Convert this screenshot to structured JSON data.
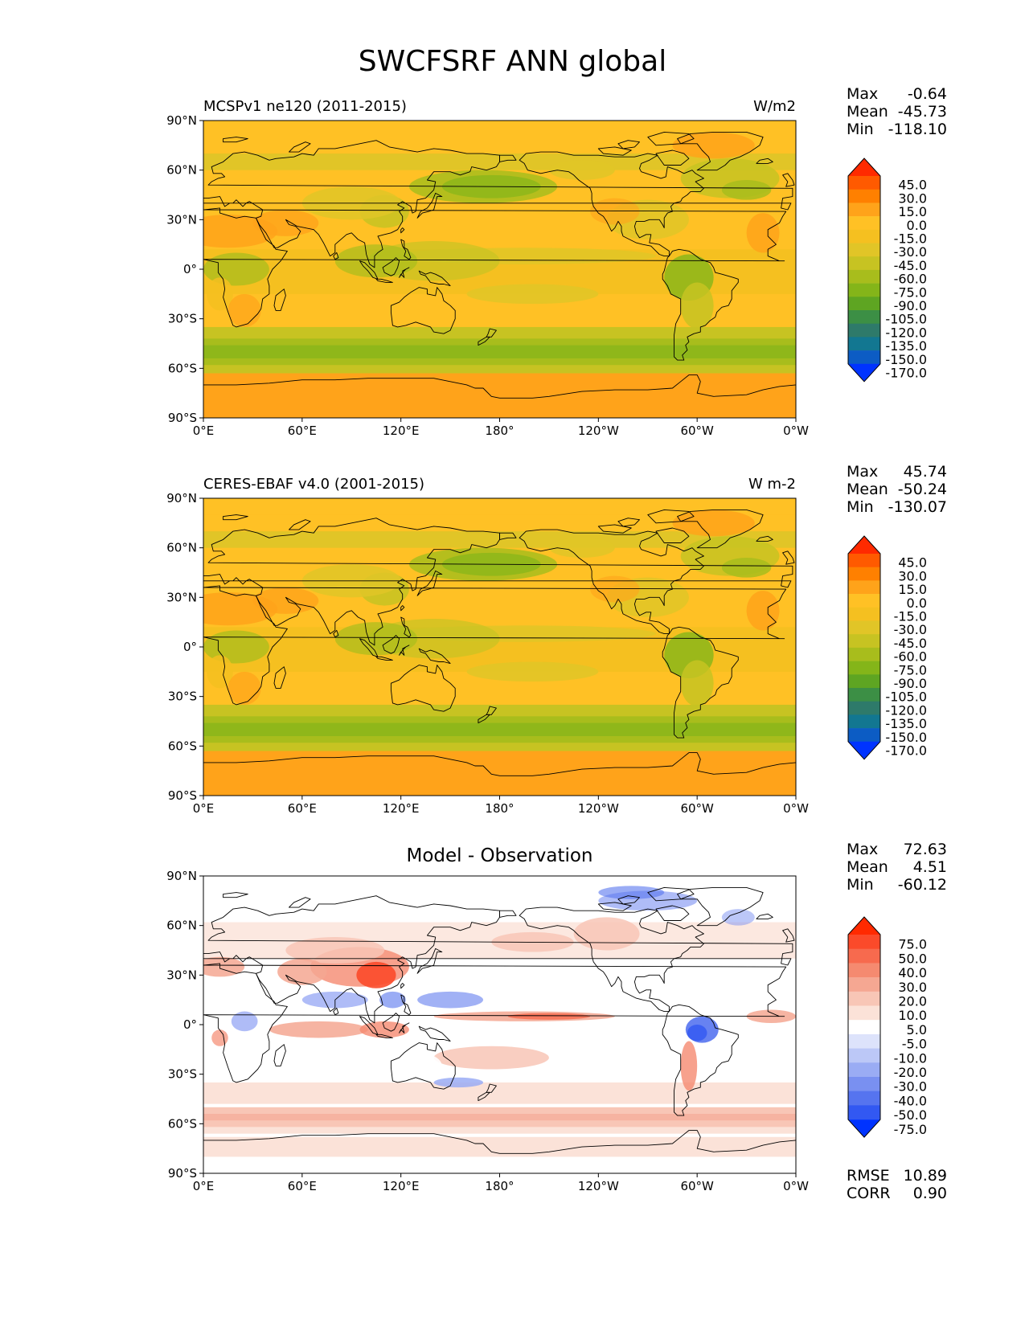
{
  "title": "SWCFSRF ANN global",
  "axes": {
    "lat_ticks": [
      "90°N",
      "60°N",
      "30°N",
      "0°",
      "30°S",
      "60°S",
      "90°S"
    ],
    "lon_ticks": [
      "0°E",
      "60°E",
      "120°E",
      "180°",
      "120°W",
      "60°W",
      "0°W"
    ]
  },
  "panels": [
    {
      "id": "model",
      "title": "MCSPv1 ne120 (2011-2015)",
      "title_position": "left",
      "units": "W/m2",
      "stats": [
        {
          "label": "Max",
          "value": "-0.64"
        },
        {
          "label": "Mean",
          "value": "-45.73"
        },
        {
          "label": "Min",
          "value": "-118.10"
        }
      ],
      "colorbar": {
        "labels": [
          "45.0",
          "30.0",
          "15.0",
          "0.0",
          "-15.0",
          "-30.0",
          "-45.0",
          "-60.0",
          "-75.0",
          "-90.0",
          "-105.0",
          "-120.0",
          "-135.0",
          "-150.0",
          "-170.0"
        ],
        "colors": [
          "#ff2a00",
          "#ff5a00",
          "#ff8000",
          "#ffa31a",
          "#ffc125",
          "#f5c020",
          "#e1c527",
          "#c7c322",
          "#a8bd1c",
          "#84b519",
          "#5ea522",
          "#3c8f45",
          "#2e7a6a",
          "#127791",
          "#0c5cc4",
          "#0033ff"
        ]
      },
      "color_scale": "sequential",
      "extras": []
    },
    {
      "id": "obs",
      "title": "CERES-EBAF v4.0 (2001-2015)",
      "title_position": "left",
      "units": "W m-2",
      "stats": [
        {
          "label": "Max",
          "value": "45.74"
        },
        {
          "label": "Mean",
          "value": "-50.24"
        },
        {
          "label": "Min",
          "value": "-130.07"
        }
      ],
      "colorbar": {
        "labels": [
          "45.0",
          "30.0",
          "15.0",
          "0.0",
          "-15.0",
          "-30.0",
          "-45.0",
          "-60.0",
          "-75.0",
          "-90.0",
          "-105.0",
          "-120.0",
          "-135.0",
          "-150.0",
          "-170.0"
        ],
        "colors": [
          "#ff2a00",
          "#ff5a00",
          "#ff8000",
          "#ffa31a",
          "#ffc125",
          "#f5c020",
          "#e1c527",
          "#c7c322",
          "#a8bd1c",
          "#84b519",
          "#5ea522",
          "#3c8f45",
          "#2e7a6a",
          "#127791",
          "#0c5cc4",
          "#0033ff"
        ]
      },
      "color_scale": "sequential",
      "extras": []
    },
    {
      "id": "diff",
      "title": "Model - Observation",
      "title_position": "center",
      "units": "",
      "stats": [
        {
          "label": "Max",
          "value": "72.63"
        },
        {
          "label": "Mean",
          "value": "4.51"
        },
        {
          "label": "Min",
          "value": "-60.12"
        }
      ],
      "colorbar": {
        "labels": [
          "75.0",
          "50.0",
          "40.0",
          "30.0",
          "20.0",
          "10.0",
          "5.0",
          "-5.0",
          "-10.0",
          "-20.0",
          "-30.0",
          "-40.0",
          "-50.0",
          "-75.0"
        ],
        "colors": [
          "#ff2a00",
          "#fb4a2a",
          "#f76a4e",
          "#f58a70",
          "#f5a792",
          "#f8c6b6",
          "#fbe2d8",
          "#ffffff",
          "#dde3fb",
          "#bcc8f7",
          "#9aacf4",
          "#7990f1",
          "#5674ef",
          "#3258f2",
          "#0033ff"
        ]
      },
      "color_scale": "diverging",
      "extras": [
        {
          "label": "RMSE",
          "value": "10.89"
        },
        {
          "label": "CORR",
          "value": "0.90"
        }
      ]
    }
  ]
}
